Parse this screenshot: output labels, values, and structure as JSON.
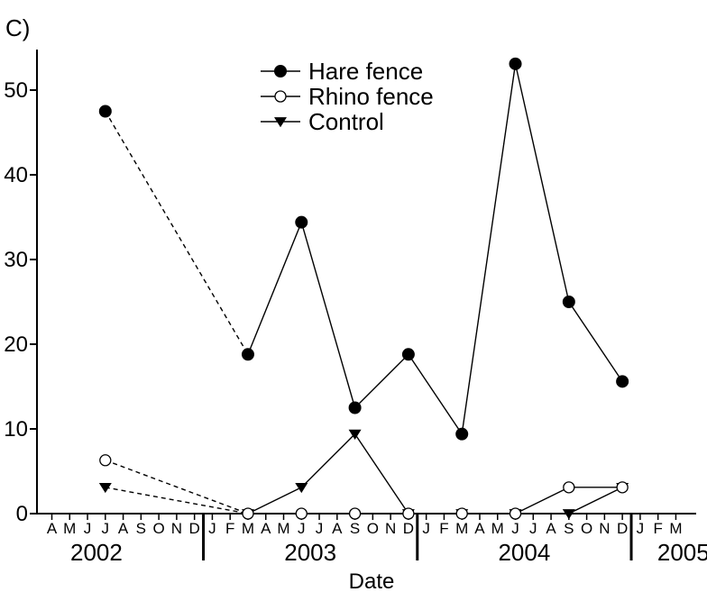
{
  "chart_data": {
    "type": "line",
    "panel_label": "C)",
    "title": "",
    "xlabel": "Date",
    "ylabel": "",
    "ylim": [
      0,
      55
    ],
    "yticks": [
      0,
      10,
      20,
      30,
      40,
      50
    ],
    "grid": false,
    "legend_position": "top-center",
    "month_labels": [
      "A",
      "M",
      "J",
      "J",
      "A",
      "S",
      "O",
      "N",
      "D",
      "J",
      "F",
      "M",
      "A",
      "M",
      "J",
      "J",
      "A",
      "S",
      "O",
      "N",
      "D",
      "J",
      "F",
      "M",
      "A",
      "M",
      "J",
      "J",
      "A",
      "S",
      "O",
      "N",
      "D",
      "J",
      "F",
      "M"
    ],
    "year_labels": [
      "2002",
      "2003",
      "2004",
      "2005"
    ],
    "series": [
      {
        "name": "Hare fence",
        "marker": "filled-circle",
        "points": [
          {
            "date": "2002-07",
            "value": 47.5
          },
          {
            "date": "2003-03",
            "value": 18.8
          },
          {
            "date": "2003-06",
            "value": 34.4
          },
          {
            "date": "2003-09",
            "value": 12.5
          },
          {
            "date": "2003-12",
            "value": 18.8
          },
          {
            "date": "2004-03",
            "value": 9.4
          },
          {
            "date": "2004-06",
            "value": 53.1
          },
          {
            "date": "2004-09",
            "value": 25.0
          },
          {
            "date": "2004-12",
            "value": 15.6
          }
        ]
      },
      {
        "name": "Rhino fence",
        "marker": "open-circle",
        "points": [
          {
            "date": "2002-07",
            "value": 6.3
          },
          {
            "date": "2003-03",
            "value": 0
          },
          {
            "date": "2003-06",
            "value": 0
          },
          {
            "date": "2003-09",
            "value": 0
          },
          {
            "date": "2003-12",
            "value": 0
          },
          {
            "date": "2004-03",
            "value": 0
          },
          {
            "date": "2004-06",
            "value": 0
          },
          {
            "date": "2004-09",
            "value": 3.1
          },
          {
            "date": "2004-12",
            "value": 3.1
          }
        ]
      },
      {
        "name": "Control",
        "marker": "filled-triangle-down",
        "points": [
          {
            "date": "2002-07",
            "value": 3.1
          },
          {
            "date": "2003-03",
            "value": 0
          },
          {
            "date": "2003-06",
            "value": 3.1
          },
          {
            "date": "2003-09",
            "value": 9.4
          },
          {
            "date": "2003-12",
            "value": 0
          },
          {
            "date": "2004-03",
            "value": 0
          },
          {
            "date": "2004-06",
            "value": 0
          },
          {
            "date": "2004-09",
            "value": 0
          },
          {
            "date": "2004-12",
            "value": 3.1
          }
        ]
      }
    ]
  }
}
